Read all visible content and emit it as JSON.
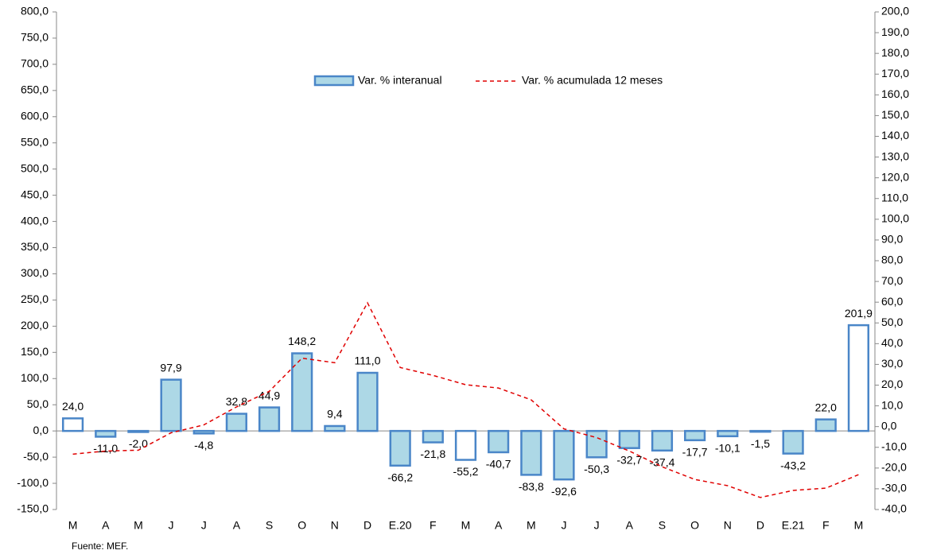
{
  "chart_data": {
    "type": "bar",
    "categories": [
      "M",
      "A",
      "M",
      "J",
      "J",
      "A",
      "S",
      "O",
      "N",
      "D",
      "E.20",
      "F",
      "M",
      "A",
      "M",
      "J",
      "J",
      "A",
      "S",
      "O",
      "N",
      "D",
      "E.21",
      "F",
      "M"
    ],
    "series": [
      {
        "name": "Var. % interanual",
        "type": "bar",
        "color": "#add8e6",
        "stroke": "#4a86c8",
        "bar_colors": [
          "#ffffff",
          "#add8e6",
          "#add8e6",
          "#add8e6",
          "#add8e6",
          "#add8e6",
          "#add8e6",
          "#add8e6",
          "#add8e6",
          "#add8e6",
          "#add8e6",
          "#add8e6",
          "#ffffff",
          "#add8e6",
          "#add8e6",
          "#add8e6",
          "#add8e6",
          "#add8e6",
          "#add8e6",
          "#add8e6",
          "#add8e6",
          "#add8e6",
          "#add8e6",
          "#add8e6",
          "#ffffff"
        ],
        "values": [
          24.0,
          -11.0,
          -2.0,
          97.9,
          -4.8,
          32.8,
          44.9,
          148.2,
          9.4,
          111.0,
          -66.2,
          -21.8,
          -55.2,
          -40.7,
          -83.8,
          -92.6,
          -50.3,
          -32.7,
          -37.4,
          -17.7,
          -10.1,
          -1.5,
          -43.2,
          22.0,
          201.9
        ],
        "value_labels": [
          "24,0",
          "-11,0",
          "-2,0",
          "97,9",
          "-4,8",
          "32,8",
          "44,9",
          "148,2",
          "9,4",
          "111,0",
          "-66,2",
          "-21,8",
          "-55,2",
          "-40,7",
          "-83,8",
          "-92,6",
          "-50,3",
          "-32,7",
          "-37,4",
          "-17,7",
          "-10,1",
          "-1,5",
          "-43,2",
          "22,0",
          "201,9"
        ]
      },
      {
        "name": "Var. % acumulada 12 meses",
        "type": "line",
        "axis": "y2",
        "color": "#e00000",
        "values": [
          -13.3,
          -11.8,
          -11.4,
          -3.0,
          0.8,
          9.5,
          17.0,
          33.0,
          30.8,
          59.7,
          28.5,
          24.7,
          20.2,
          18.6,
          12.9,
          -1.1,
          -5.3,
          -11.8,
          -19.4,
          -25.5,
          -28.5,
          -34.2,
          -30.8,
          -29.7,
          -23.2
        ]
      }
    ],
    "ylim": [
      -150,
      800
    ],
    "yticks": [
      {
        "value": -150,
        "label": "-150,0"
      },
      {
        "value": -100,
        "label": "-100,0"
      },
      {
        "value": -50,
        "label": "-50,0"
      },
      {
        "value": 0,
        "label": "0,0"
      },
      {
        "value": 50,
        "label": "50,0"
      },
      {
        "value": 100,
        "label": "100,0"
      },
      {
        "value": 150,
        "label": "150,0"
      },
      {
        "value": 200,
        "label": "200,0"
      },
      {
        "value": 250,
        "label": "250,0"
      },
      {
        "value": 300,
        "label": "300,0"
      },
      {
        "value": 350,
        "label": "350,0"
      },
      {
        "value": 400,
        "label": "400,0"
      },
      {
        "value": 450,
        "label": "450,0"
      },
      {
        "value": 500,
        "label": "500,0"
      },
      {
        "value": 550,
        "label": "550,0"
      },
      {
        "value": 600,
        "label": "600,0"
      },
      {
        "value": 650,
        "label": "650,0"
      },
      {
        "value": 700,
        "label": "700,0"
      },
      {
        "value": 750,
        "label": "750,0"
      },
      {
        "value": 800,
        "label": "800,0"
      }
    ],
    "y2lim": [
      -40,
      200
    ],
    "y2ticks": [
      {
        "value": -40,
        "label": "-40,0"
      },
      {
        "value": -30,
        "label": "-30,0"
      },
      {
        "value": -20,
        "label": "-20,0"
      },
      {
        "value": -10,
        "label": "-10,0"
      },
      {
        "value": 0,
        "label": "0,0"
      },
      {
        "value": 10,
        "label": "10,0"
      },
      {
        "value": 20,
        "label": "20,0"
      },
      {
        "value": 30,
        "label": "30,0"
      },
      {
        "value": 40,
        "label": "40,0"
      },
      {
        "value": 50,
        "label": "50,0"
      },
      {
        "value": 60,
        "label": "60,0"
      },
      {
        "value": 70,
        "label": "70,0"
      },
      {
        "value": 80,
        "label": "80,0"
      },
      {
        "value": 90,
        "label": "90,0"
      },
      {
        "value": 100,
        "label": "100,0"
      },
      {
        "value": 110,
        "label": "110,0"
      },
      {
        "value": 120,
        "label": "120,0"
      },
      {
        "value": 130,
        "label": "130,0"
      },
      {
        "value": 140,
        "label": "140,0"
      },
      {
        "value": 150,
        "label": "150,0"
      },
      {
        "value": 160,
        "label": "160,0"
      },
      {
        "value": 170,
        "label": "170,0"
      },
      {
        "value": 180,
        "label": "180,0"
      },
      {
        "value": 190,
        "label": "190,0"
      },
      {
        "value": 200,
        "label": "200,0"
      }
    ],
    "grid": false,
    "legend": "top",
    "source": "Fuente: MEF."
  }
}
